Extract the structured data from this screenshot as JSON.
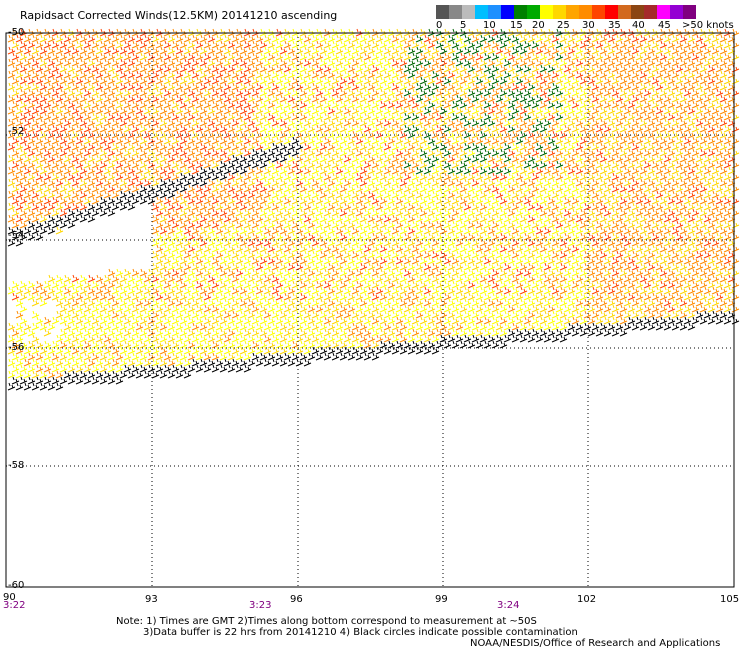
{
  "title": "Rapidsact Corrected Winds(12.5KM) 20141210 ascending",
  "colorbar": {
    "colors": [
      "#555555",
      "#888888",
      "#bbbbbb",
      "#00bfff",
      "#1e90ff",
      "#0000ff",
      "#008000",
      "#00aa00",
      "#ffff00",
      "#ffd700",
      "#ffa500",
      "#ff8c00",
      "#ff4500",
      "#ff0000",
      "#d2691e",
      "#8b4513",
      "#a52a2a",
      "#ff00ff",
      "#9400d3",
      "#800080"
    ],
    "labels": [
      "0",
      "5",
      "10",
      "15",
      "20",
      "25",
      "30",
      "35",
      "40",
      "45",
      ">50 knots"
    ]
  },
  "lat_labels": [
    "-50",
    "-52",
    "-54",
    "-56",
    "-58",
    "-60"
  ],
  "lon_labels": [
    "90",
    "93",
    "96",
    "99",
    "102",
    "105"
  ],
  "times": [
    "3:22",
    "3:23",
    "3:24"
  ],
  "notes": [
    "Note: 1) Times are GMT 2)Times along bottom correspond to measurement at ~50S",
    "3)Data buffer is 22 hrs from 20141210 4) Black circles indicate possible contamination",
    "NOAA/NESDIS/Office of Research and Applications"
  ],
  "wind_colors": {
    "calm": "#006400",
    "low": "#000000",
    "mid": "#ffd700",
    "yellow": "#ffff00",
    "orange": "#ff8c00",
    "red": "#ff4500",
    "magenta": "#ff00ff"
  }
}
